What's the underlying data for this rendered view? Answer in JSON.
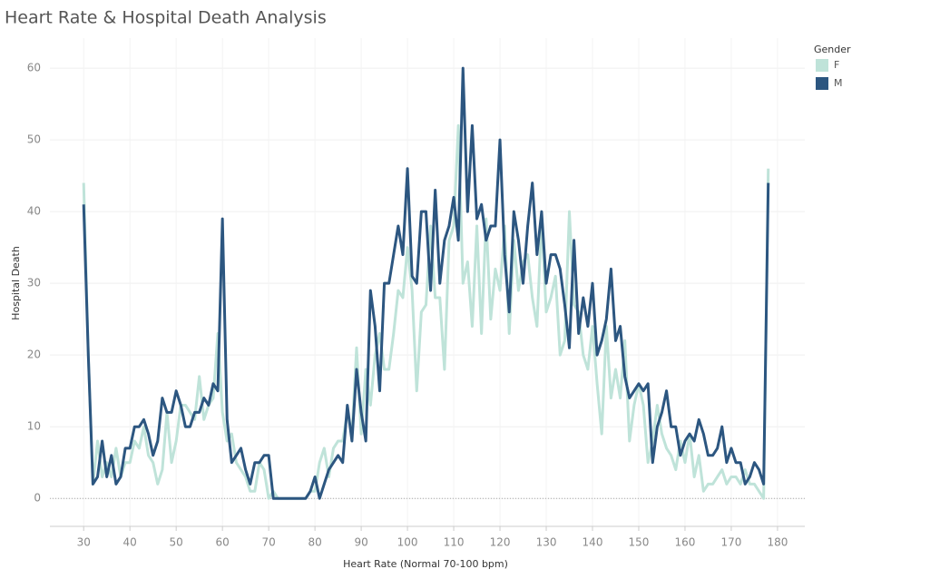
{
  "chart_data": {
    "type": "line",
    "title": "Heart Rate & Hospital Death Analysis",
    "x_label": "Heart Rate (Normal 70-100 bpm)",
    "y_label": "Hospital Death",
    "legend_title": "Gender",
    "legend_position": "right",
    "grid": true,
    "x": [
      30,
      31,
      32,
      33,
      34,
      35,
      36,
      37,
      38,
      39,
      40,
      41,
      42,
      43,
      44,
      45,
      46,
      47,
      48,
      49,
      50,
      51,
      52,
      53,
      54,
      55,
      56,
      57,
      58,
      59,
      60,
      61,
      62,
      63,
      64,
      65,
      66,
      67,
      68,
      69,
      70,
      71,
      72,
      73,
      74,
      75,
      76,
      77,
      78,
      79,
      80,
      81,
      82,
      83,
      84,
      85,
      86,
      87,
      88,
      89,
      90,
      91,
      92,
      93,
      94,
      95,
      96,
      97,
      98,
      99,
      100,
      101,
      102,
      103,
      104,
      105,
      106,
      107,
      108,
      109,
      110,
      111,
      112,
      113,
      114,
      115,
      116,
      117,
      118,
      119,
      120,
      121,
      122,
      123,
      124,
      125,
      126,
      127,
      128,
      129,
      130,
      131,
      132,
      133,
      134,
      135,
      136,
      137,
      138,
      139,
      140,
      141,
      142,
      143,
      144,
      145,
      146,
      147,
      148,
      149,
      150,
      151,
      152,
      153,
      154,
      155,
      156,
      157,
      158,
      159,
      160,
      161,
      162,
      163,
      164,
      165,
      166,
      167,
      168,
      169,
      170,
      171,
      172,
      173,
      174,
      175,
      176,
      177,
      178
    ],
    "series": [
      {
        "name": "F",
        "color": "#bfe3d9",
        "values": [
          44,
          20,
          2,
          8,
          3,
          5,
          3,
          7,
          3,
          5,
          5,
          8,
          7,
          10,
          6,
          5,
          2,
          4,
          12,
          5,
          8,
          13,
          13,
          12,
          11,
          17,
          11,
          13,
          14,
          23,
          12,
          8,
          9,
          5,
          4,
          3,
          1,
          1,
          5,
          4,
          0,
          1,
          0,
          0,
          0,
          0,
          0,
          0,
          0,
          1,
          1,
          5,
          7,
          3,
          7,
          8,
          8,
          12,
          9,
          21,
          9,
          18,
          13,
          20,
          23,
          18,
          18,
          23,
          29,
          28,
          35,
          29,
          15,
          26,
          27,
          38,
          28,
          28,
          18,
          36,
          38,
          52,
          30,
          33,
          24,
          38,
          23,
          39,
          25,
          32,
          29,
          38,
          23,
          36,
          29,
          33,
          34,
          28,
          24,
          39,
          26,
          28,
          31,
          20,
          22,
          40,
          27,
          26,
          20,
          18,
          24,
          16,
          9,
          24,
          14,
          18,
          14,
          22,
          8,
          13,
          16,
          13,
          5,
          8,
          13,
          9,
          7,
          6,
          4,
          8,
          5,
          9,
          3,
          6,
          1,
          2,
          2,
          3,
          4,
          2,
          3,
          3,
          2,
          4,
          2,
          2,
          1,
          0,
          46
        ]
      },
      {
        "name": "M",
        "color": "#2c5680",
        "values": [
          41,
          20,
          2,
          3,
          8,
          3,
          6,
          2,
          3,
          7,
          7,
          10,
          10,
          11,
          9,
          6,
          8,
          14,
          12,
          12,
          15,
          13,
          10,
          10,
          12,
          12,
          14,
          13,
          16,
          15,
          39,
          11,
          5,
          6,
          7,
          4,
          2,
          5,
          5,
          6,
          6,
          0,
          0,
          0,
          0,
          0,
          0,
          0,
          0,
          1,
          3,
          0,
          2,
          4,
          5,
          6,
          5,
          13,
          8,
          18,
          12,
          8,
          29,
          24,
          15,
          30,
          30,
          34,
          38,
          34,
          46,
          31,
          30,
          40,
          40,
          29,
          43,
          30,
          36,
          38,
          42,
          36,
          60,
          40,
          52,
          39,
          41,
          36,
          38,
          38,
          50,
          34,
          26,
          40,
          36,
          30,
          38,
          44,
          34,
          40,
          30,
          34,
          34,
          32,
          27,
          21,
          36,
          23,
          28,
          24,
          30,
          20,
          22,
          25,
          32,
          22,
          24,
          17,
          14,
          15,
          16,
          15,
          16,
          5,
          10,
          12,
          15,
          10,
          10,
          6,
          8,
          9,
          8,
          11,
          9,
          6,
          6,
          7,
          10,
          5,
          7,
          5,
          5,
          2,
          3,
          5,
          4,
          2,
          44
        ]
      }
    ],
    "xlim": [
      22.7,
      185.9
    ],
    "ylim": [
      -3.9,
      64.2
    ],
    "xticks": [
      30,
      40,
      50,
      60,
      70,
      80,
      90,
      100,
      110,
      120,
      130,
      140,
      150,
      160,
      170,
      180
    ],
    "yticks": [
      0,
      10,
      20,
      30,
      40,
      50,
      60
    ]
  }
}
